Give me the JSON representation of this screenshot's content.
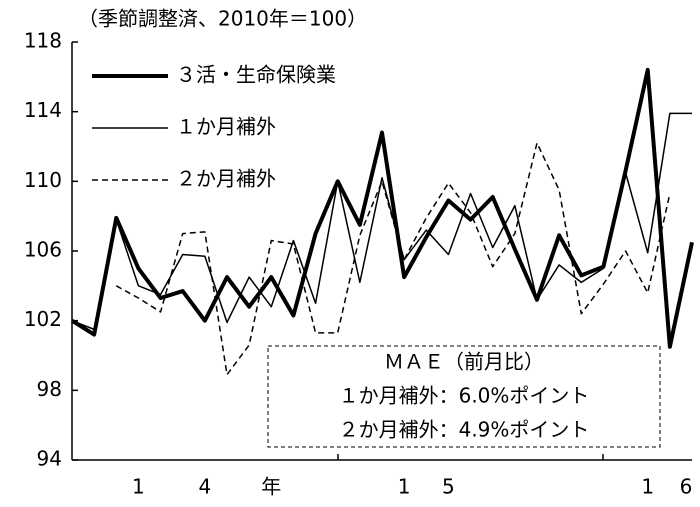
{
  "chart_data": {
    "type": "line",
    "title": "（季節調整済、2010年＝100）",
    "categories": [
      null,
      null,
      null,
      "1",
      null,
      null,
      "4",
      null,
      null,
      "年",
      null,
      null,
      null,
      null,
      null,
      "1",
      null,
      "5",
      null,
      null,
      null,
      null,
      null,
      null,
      null,
      null,
      "1",
      null,
      "6"
    ],
    "series": [
      {
        "name": "３活・生命保険業",
        "color": "#000000",
        "width": 4,
        "style": "solid",
        "values": [
          102,
          101.2,
          107.9,
          105,
          103.3,
          103.7,
          102,
          104.5,
          102.8,
          104.5,
          102.3,
          107,
          110,
          107.5,
          112.8,
          104.5,
          106.8,
          108.9,
          107.8,
          109.1,
          106.1,
          103.2,
          106.9,
          104.6,
          105.1,
          110.6,
          116.4,
          100.5,
          106.5
        ]
      },
      {
        "name": "１か月補外",
        "color": "#000000",
        "width": 1.5,
        "style": "solid",
        "values": [
          102,
          101.5,
          107.8,
          104,
          103.5,
          105.8,
          105.7,
          101.9,
          104.5,
          102.8,
          106.6,
          103,
          110,
          104.2,
          110.2,
          105.5,
          107.2,
          105.8,
          109.3,
          106.2,
          108.6,
          103.2,
          105.2,
          104.2,
          105,
          110.5,
          105.9,
          113.9,
          113.9
        ]
      },
      {
        "name": "２か月補外",
        "color": "#000000",
        "width": 1.5,
        "style": "dashed",
        "values": [
          null,
          null,
          104,
          103.3,
          102.5,
          107,
          107.1,
          98.9,
          100.6,
          106.6,
          106.4,
          101.3,
          101.3,
          106.9,
          110,
          105.5,
          107.9,
          109.9,
          108.2,
          105.1,
          107,
          112.2,
          109.5,
          102.4,
          104.1,
          106,
          103.6,
          109.3,
          null
        ]
      }
    ],
    "ylim": [
      94,
      118
    ],
    "yticks": [
      94,
      98,
      102,
      106,
      110,
      114,
      118
    ],
    "legend": "upper left",
    "annotation": [
      "ＭＡＥ（前月比）",
      "１か月補外：6.0%ポイント",
      "２か月補外：4.9%ポイント"
    ]
  }
}
